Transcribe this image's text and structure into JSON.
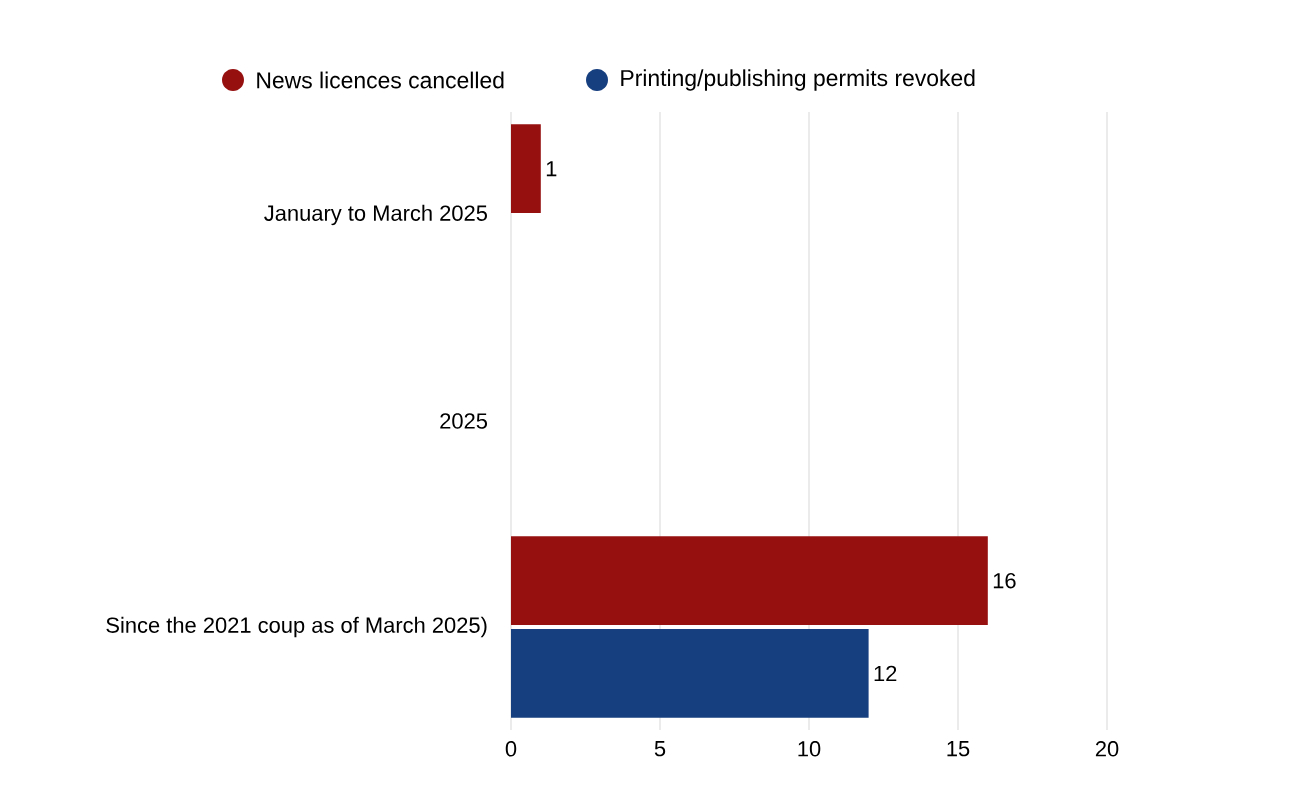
{
  "chart_data": {
    "type": "bar",
    "orientation": "horizontal",
    "categories": [
      "January to March 2025",
      "2025",
      "Since the 2021 coup as of March 2025)"
    ],
    "series": [
      {
        "name": "News licences cancelled",
        "color": "#961010",
        "values": [
          1,
          null,
          16
        ]
      },
      {
        "name": "Printing/publishing permits revoked",
        "color": "#163f7f",
        "values": [
          null,
          null,
          12
        ]
      }
    ],
    "xlim": [
      0,
      20
    ],
    "xticks": [
      0,
      5,
      10,
      15,
      20
    ],
    "grid": "x",
    "legend": "top",
    "data_labels": true
  }
}
